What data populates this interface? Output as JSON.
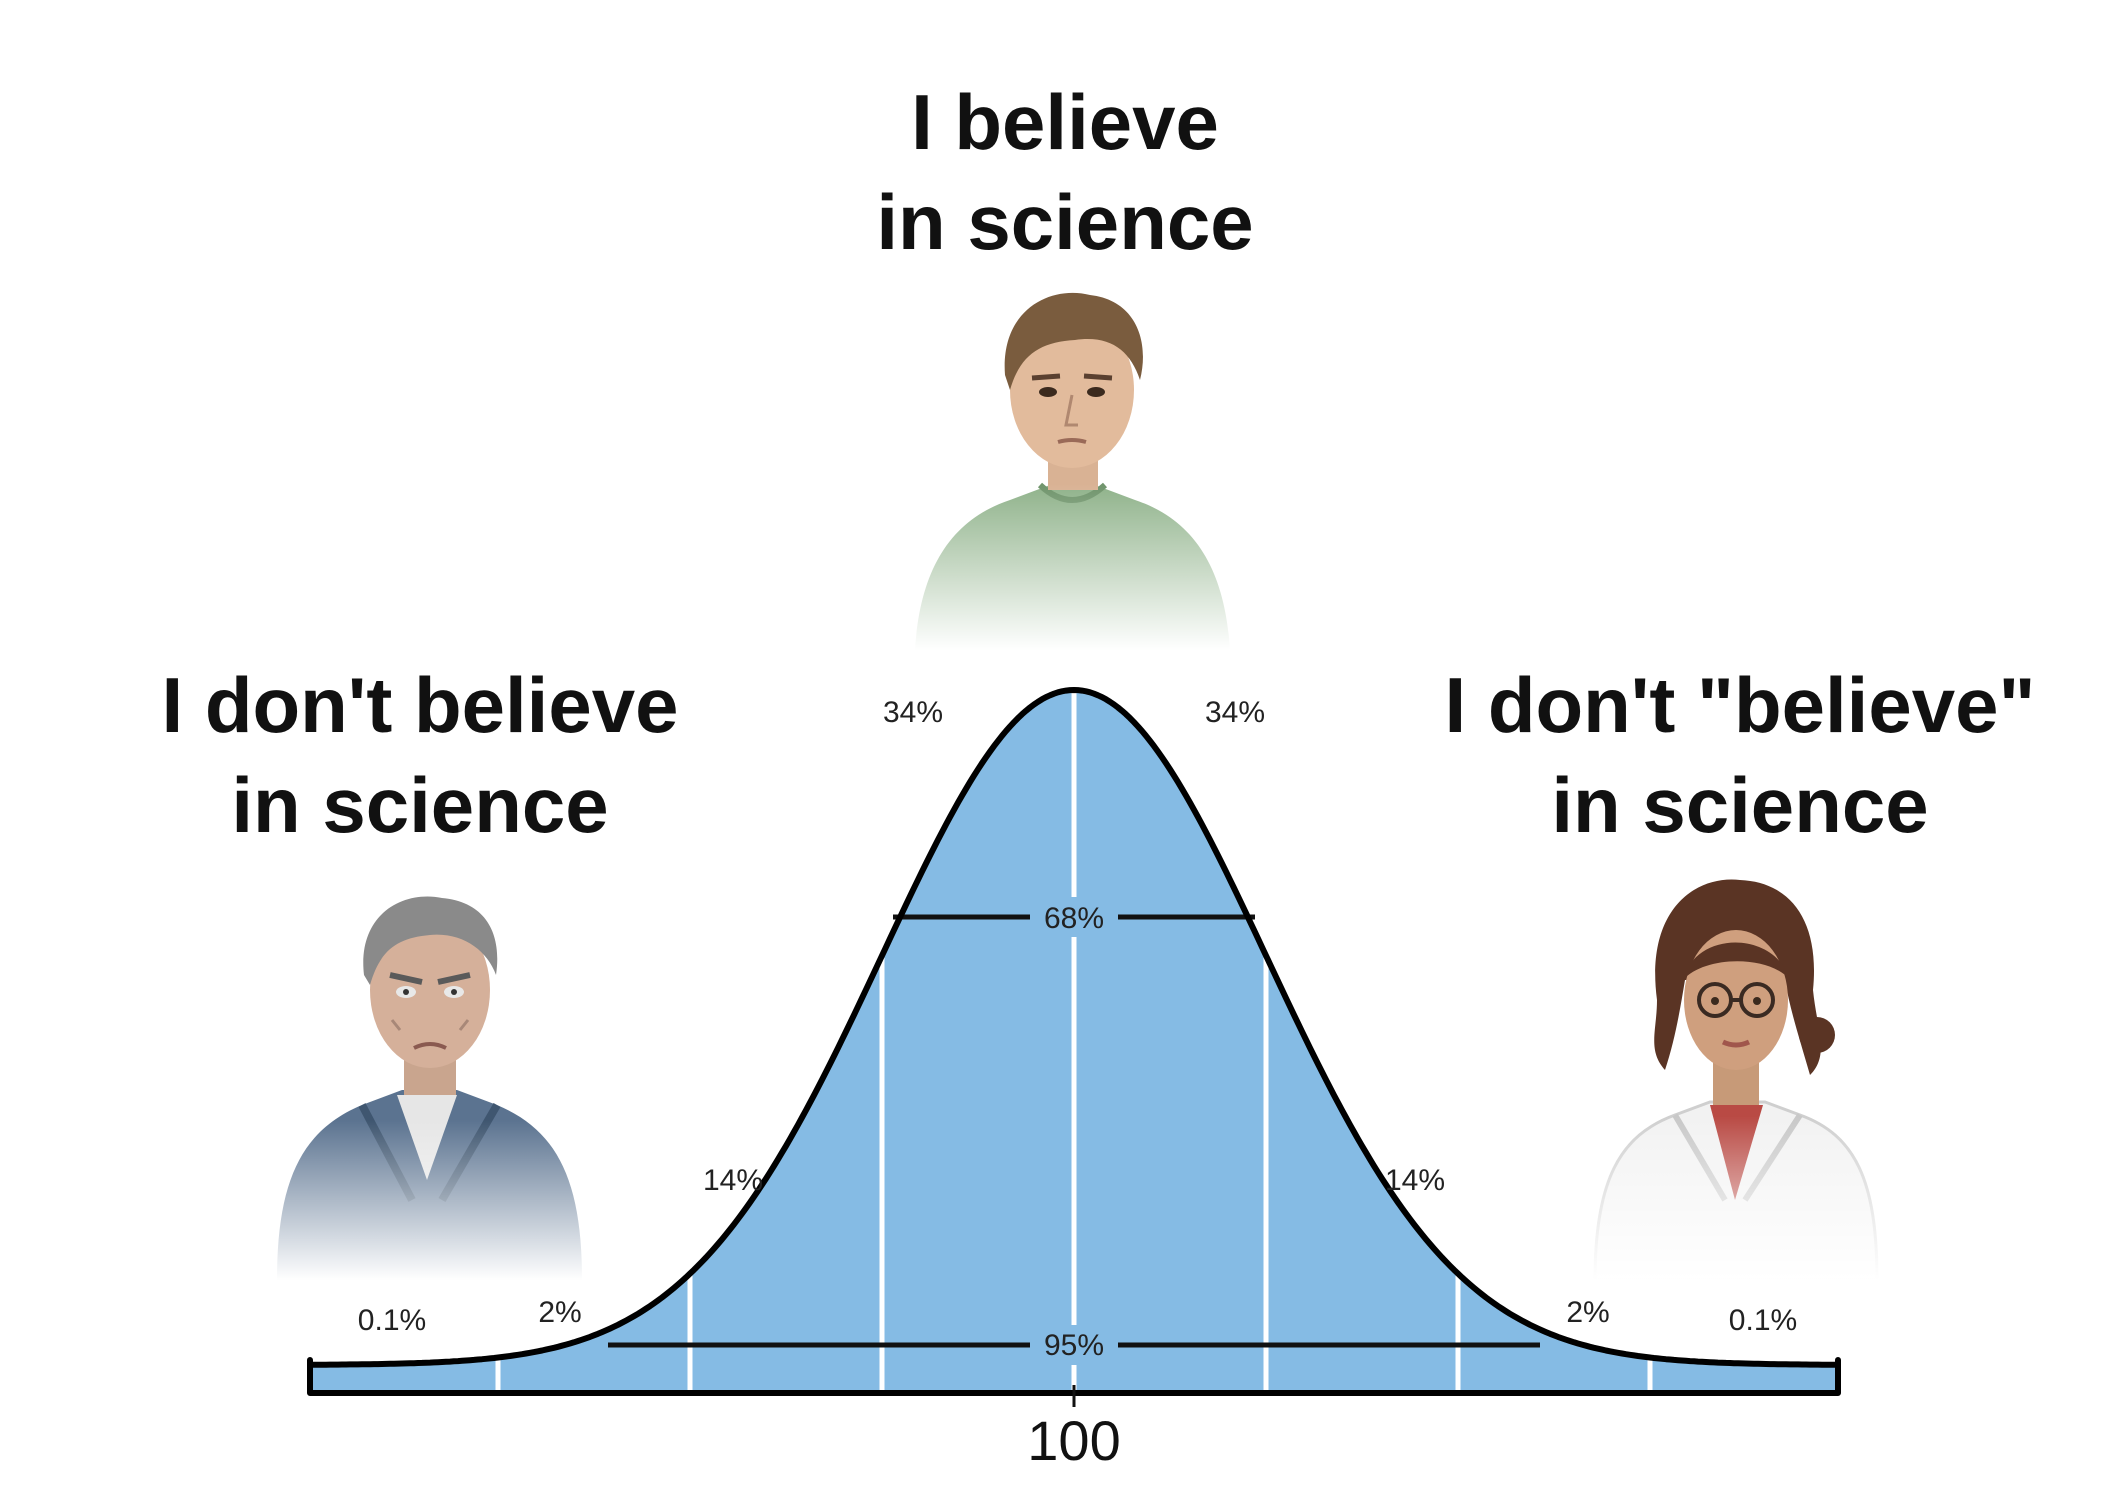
{
  "captions": {
    "center": {
      "line1": "I believe",
      "line2": "in science"
    },
    "left": {
      "line1": "I don't believe",
      "line2": "in science"
    },
    "right": {
      "line1": "I don't \"believe\"",
      "line2": "in science"
    }
  },
  "figures": {
    "center": "young-man-green-shirt-illustration",
    "left": "older-man-denim-jacket-illustration",
    "right": "woman-scientist-lab-coat-illustration"
  },
  "chart_data": {
    "type": "area",
    "distribution": "normal",
    "mean": 100,
    "x_tick_labels": [
      "100"
    ],
    "segment_labels": {
      "tail_left": "0.1%",
      "far_left": "2%",
      "mid_left": "14%",
      "inner_left": "34%",
      "inner_right": "34%",
      "mid_right": "14%",
      "far_right": "2%",
      "tail_right": "0.1%"
    },
    "brackets": {
      "one_sd": "68%",
      "two_sd": "95%"
    },
    "colors": {
      "fill": "#85bbe4",
      "outline": "#000000",
      "dividers": "#ffffff"
    }
  }
}
